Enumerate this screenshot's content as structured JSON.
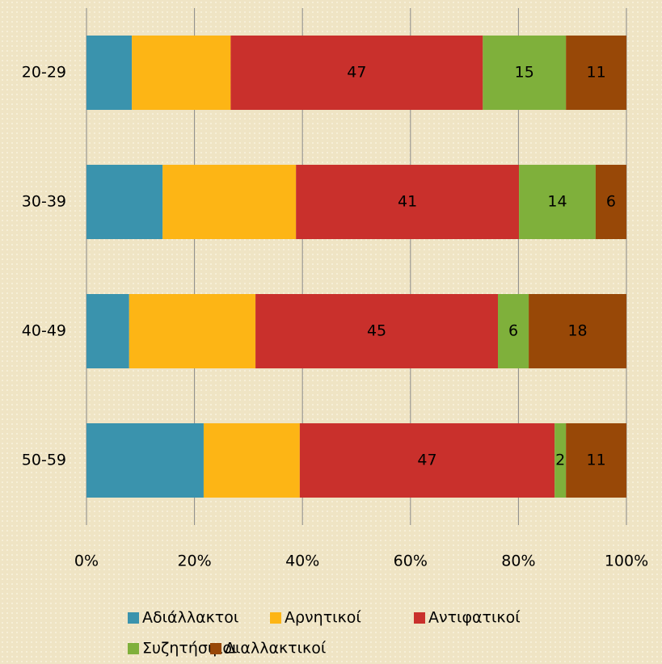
{
  "chart_data": {
    "type": "stacked_bar_horizontal",
    "categories": [
      "20-29",
      "30-39",
      "40-49",
      "50-59"
    ],
    "series": [
      {
        "name": "Αδιάλλακτοι",
        "color": "#3a93ad",
        "values": [
          8.4,
          14.1,
          7.9,
          21.7
        ]
      },
      {
        "name": "Αρνητικοί",
        "color": "#fdb515",
        "values": [
          18.3,
          24.7,
          23.4,
          17.8
        ]
      },
      {
        "name": "Αντιφατικοί",
        "color": "#c9302c",
        "values": [
          46.7,
          41.3,
          44.9,
          47.2
        ],
        "value_labels": [
          "47",
          "41",
          "45",
          "47"
        ]
      },
      {
        "name": "Συζητήσιμοι",
        "color": "#7fb03b",
        "values": [
          15.4,
          14.2,
          5.7,
          2.1
        ],
        "value_labels": [
          "15",
          "14",
          "6",
          "2"
        ]
      },
      {
        "name": "Διαλλακτικοί",
        "color": "#984807",
        "values": [
          11.2,
          5.7,
          18.1,
          11.2
        ],
        "value_labels": [
          "11",
          "6",
          "18",
          "11"
        ]
      }
    ],
    "xlim": [
      0,
      100
    ],
    "xticks": [
      {
        "value": 0,
        "label": "0%"
      },
      {
        "value": 20,
        "label": "20%"
      },
      {
        "value": 40,
        "label": "40%"
      },
      {
        "value": 60,
        "label": "60%"
      },
      {
        "value": 80,
        "label": "80%"
      },
      {
        "value": 100,
        "label": "100%"
      }
    ],
    "grid": true,
    "legend": "bottom"
  }
}
